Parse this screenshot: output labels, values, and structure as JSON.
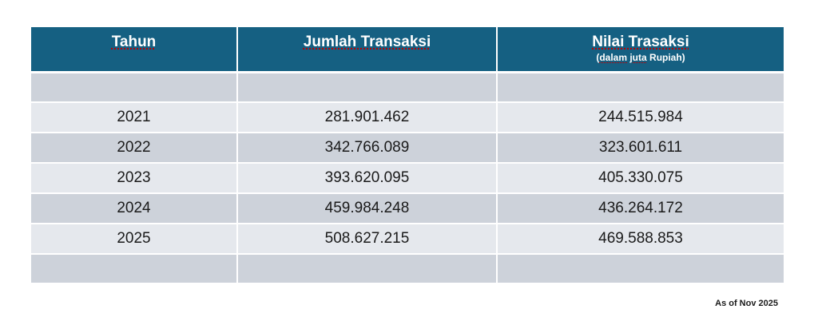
{
  "table": {
    "headers": {
      "col1": "Tahun",
      "col2": "Jumlah Transaksi",
      "col3": "Nilai Trasaksi",
      "col3_sub_open": "(",
      "col3_sub_word1": "dalam",
      "col3_sub_space1": " ",
      "col3_sub_word2": "juta",
      "col3_sub_rest": " Rupiah)"
    },
    "rows": [
      {
        "year": "2021",
        "jumlah": "281.901.462",
        "nilai": "244.515.984"
      },
      {
        "year": "2022",
        "jumlah": "342.766.089",
        "nilai": "323.601.611"
      },
      {
        "year": "2023",
        "jumlah": "393.620.095",
        "nilai": "405.330.075"
      },
      {
        "year": "2024",
        "jumlah": "459.984.248",
        "nilai": "436.264.172"
      },
      {
        "year": "2025",
        "jumlah": "508.627.215",
        "nilai": "469.588.853"
      }
    ]
  },
  "footnote": "As of Nov 2025"
}
